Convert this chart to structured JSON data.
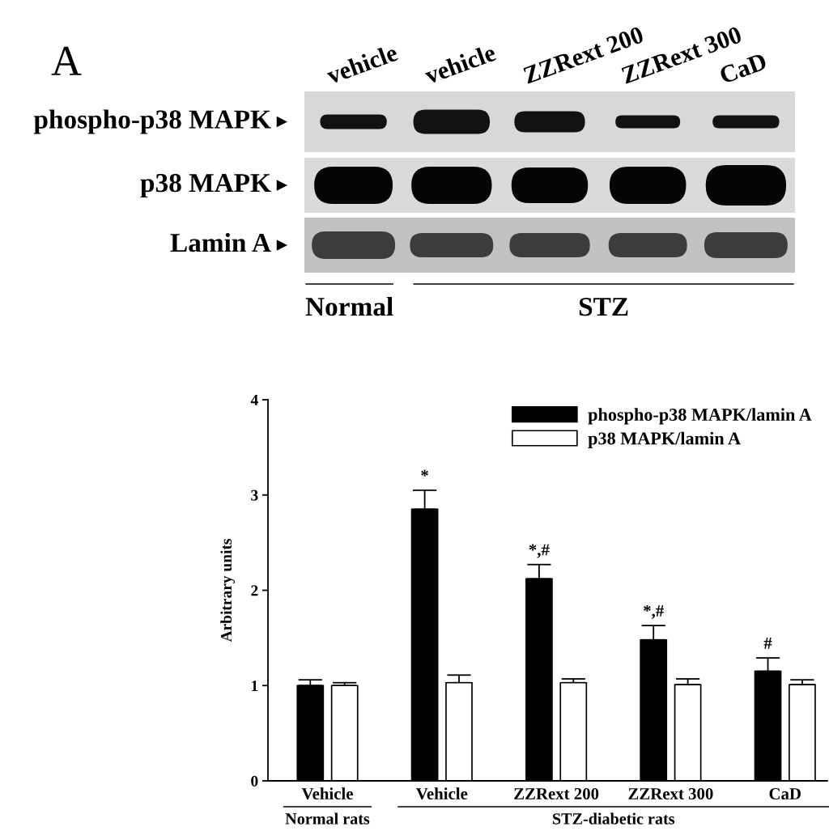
{
  "chart_data": [
    {
      "type": "other",
      "title": "A",
      "categories": [
        "vehicle",
        "vehicle",
        "ZZRext 200",
        "ZZRext 300",
        "CaD"
      ],
      "annotations": [
        "phospho-p38 MAPK",
        "p38 MAPK",
        "Lamin A",
        "Normal",
        "STZ"
      ]
    },
    {
      "type": "bar",
      "categories": [
        "Vehicle",
        "Vehicle",
        "ZZRext 200",
        "ZZRext 300",
        "CaD"
      ],
      "series": [
        {
          "name": "phospho-p38 MAPK/lamin A",
          "color": "#000000",
          "values": [
            1.0,
            2.85,
            2.12,
            1.48,
            1.15
          ],
          "errors": [
            [
              1.0,
              1.06
            ],
            [
              2.85,
              3.05
            ],
            [
              2.12,
              2.27
            ],
            [
              1.48,
              1.63
            ],
            [
              1.15,
              1.29
            ]
          ]
        },
        {
          "name": "p38 MAPK/lamin A",
          "color": "#ffffff",
          "values": [
            1.0,
            1.03,
            1.03,
            1.01,
            1.01
          ],
          "errors": [
            [
              1.0,
              1.03
            ],
            [
              1.03,
              1.11
            ],
            [
              1.03,
              1.07
            ],
            [
              1.01,
              1.07
            ],
            [
              1.01,
              1.06
            ]
          ]
        }
      ],
      "ylabel": "Arbitrary units",
      "ylim": [
        0,
        4
      ],
      "yticks": [
        0,
        1,
        2,
        3,
        4
      ],
      "legend": "top right",
      "grid": false,
      "annotations": [
        "*",
        "*,#",
        "*,#",
        "#",
        "Normal rats",
        "STZ-diabetic rats"
      ]
    }
  ]
}
